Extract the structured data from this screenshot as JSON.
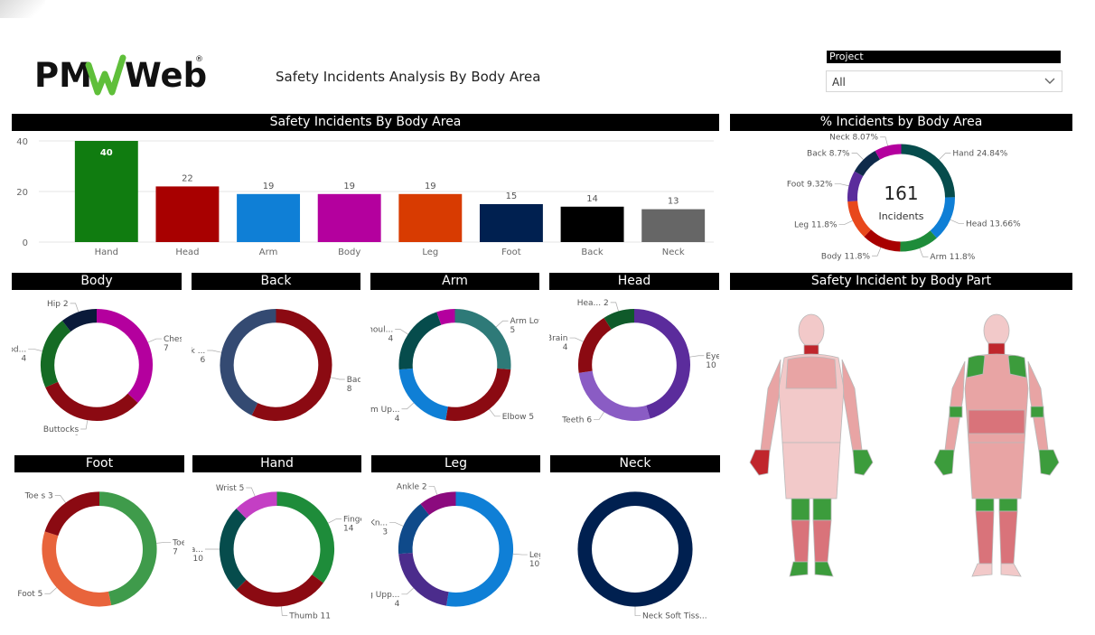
{
  "header": {
    "logo_pm": "PM",
    "logo_web": "Web",
    "logo_reg": "®",
    "title": "Safety Incidents Analysis By Body Area"
  },
  "slicer": {
    "label": "Project",
    "value": "All"
  },
  "colors": {
    "band_bg": "#000000",
    "band_text": "#ffffff"
  },
  "chart_data": [
    {
      "id": "bar",
      "type": "bar",
      "title": "Safety Incidents By Body Area",
      "categories": [
        "Hand",
        "Head",
        "Arm",
        "Body",
        "Leg",
        "Foot",
        "Back",
        "Neck"
      ],
      "values": [
        40,
        22,
        19,
        19,
        19,
        15,
        14,
        13
      ],
      "colors": [
        "#107c10",
        "#a80000",
        "#0f7fd6",
        "#b4009e",
        "#d83b01",
        "#002050",
        "#000000",
        "#666666"
      ],
      "yticks": [
        "0",
        "20",
        "40"
      ],
      "ylim": [
        0,
        40
      ]
    },
    {
      "id": "pct",
      "type": "pie",
      "title": "% Incidents by Body Area",
      "center_value": "161",
      "center_label": "Incidents",
      "slices": [
        {
          "label": "Hand 24.84%",
          "value": 24.84,
          "color": "#064c4c"
        },
        {
          "label": "Head 13.66%",
          "value": 13.66,
          "color": "#0f7fd6"
        },
        {
          "label": "Arm 11.8%",
          "value": 11.8,
          "color": "#1e8c3a"
        },
        {
          "label": "Body 11.8%",
          "value": 11.8,
          "color": "#a80000"
        },
        {
          "label": "Leg 11.8%",
          "value": 11.8,
          "color": "#e8481c"
        },
        {
          "label": "Foot 9.32%",
          "value": 9.32,
          "color": "#5b2c9c"
        },
        {
          "label": "Back 8.7%",
          "value": 8.7,
          "color": "#0f2a4a"
        },
        {
          "label": "Neck 8.07%",
          "value": 8.07,
          "color": "#b4009e"
        }
      ]
    },
    {
      "id": "body",
      "type": "pie",
      "title": "Body",
      "slices": [
        {
          "label": "Chest",
          "value_label": "7",
          "value": 7,
          "color": "#b4009e"
        },
        {
          "label": "Buttocks",
          "value_label": "6",
          "value": 6,
          "color": "#8b0a12"
        },
        {
          "label": "Abd...",
          "value_label": "4",
          "value": 4,
          "color": "#156b24"
        },
        {
          "label": "Hip 2",
          "value_label": "",
          "value": 2,
          "color": "#0a1a3a"
        }
      ]
    },
    {
      "id": "back",
      "type": "pie",
      "title": "Back",
      "slices": [
        {
          "label": "Back Lo...",
          "value_label": "8",
          "value": 8,
          "color": "#8b0a12"
        },
        {
          "label": "Back ...",
          "value_label": "6",
          "value": 6,
          "color": "#344a72"
        }
      ]
    },
    {
      "id": "arm",
      "type": "pie",
      "title": "Arm",
      "slices": [
        {
          "label": "Arm Low...",
          "value_label": "5",
          "value": 5,
          "color": "#2e7a78"
        },
        {
          "label": "Elbow 5",
          "value_label": "",
          "value": 5,
          "color": "#8b0a12"
        },
        {
          "label": "Arm Up...",
          "value_label": "4",
          "value": 4,
          "color": "#0f7fd6"
        },
        {
          "label": "Shoul...",
          "value_label": "4",
          "value": 4,
          "color": "#064c4c"
        },
        {
          "label": "",
          "value_label": "",
          "value": 1,
          "color": "#b4009e"
        }
      ]
    },
    {
      "id": "head",
      "type": "pie",
      "title": "Head",
      "slices": [
        {
          "label": "Eye s",
          "value_label": "10",
          "value": 10,
          "color": "#5b2c9c"
        },
        {
          "label": "Teeth 6",
          "value_label": "",
          "value": 6,
          "color": "#8a5cc4"
        },
        {
          "label": "Brain",
          "value_label": "4",
          "value": 4,
          "color": "#8b0a12"
        },
        {
          "label": "Hea... 2",
          "value_label": "",
          "value": 2,
          "color": "#0f5a2a"
        }
      ]
    },
    {
      "id": "foot",
      "type": "pie",
      "title": "Foot",
      "slices": [
        {
          "label": "Toe G...",
          "value_label": "7",
          "value": 7,
          "color": "#3f9b4b"
        },
        {
          "label": "Foot 5",
          "value_label": "",
          "value": 5,
          "color": "#e8643c"
        },
        {
          "label": "Toe s 3",
          "value_label": "",
          "value": 3,
          "color": "#8b0a12"
        }
      ]
    },
    {
      "id": "hand",
      "type": "pie",
      "title": "Hand",
      "slices": [
        {
          "label": "Finger s",
          "value_label": "14",
          "value": 14,
          "color": "#1e8c3a"
        },
        {
          "label": "Thumb 11",
          "value_label": "",
          "value": 11,
          "color": "#8b0a12"
        },
        {
          "label": "Ha...",
          "value_label": "10",
          "value": 10,
          "color": "#064c4c"
        },
        {
          "label": "Wrist 5",
          "value_label": "",
          "value": 5,
          "color": "#c43fc4"
        }
      ]
    },
    {
      "id": "leg",
      "type": "pie",
      "title": "Leg",
      "slices": [
        {
          "label": "Leg L...",
          "value_label": "10",
          "value": 10,
          "color": "#0f7fd6"
        },
        {
          "label": "Leg Upp...",
          "value_label": "4",
          "value": 4,
          "color": "#4b2c8c"
        },
        {
          "label": "Kn...",
          "value_label": "3",
          "value": 3,
          "color": "#0f4a8a"
        },
        {
          "label": "Ankle 2",
          "value_label": "",
          "value": 2,
          "color": "#8b0a7e"
        }
      ]
    },
    {
      "id": "neck",
      "type": "pie",
      "title": "Neck",
      "slices": [
        {
          "label": "Neck Soft Tiss...",
          "value_label": "13",
          "value": 13,
          "color": "#002050"
        }
      ]
    }
  ],
  "bodymap": {
    "title": "Safety Incident by Body Part",
    "colors": {
      "skin": "#f2c9c9",
      "mid": "#e8a4a4",
      "dark": "#d9737a",
      "green": "#3c9c3c",
      "red": "#c0262c",
      "outline": "#b9b9b9"
    }
  }
}
